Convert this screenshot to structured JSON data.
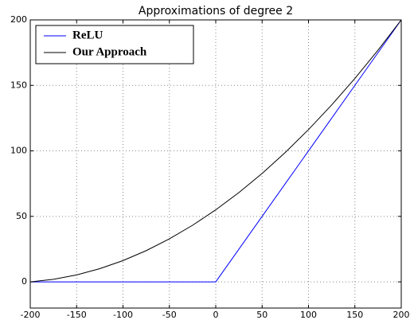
{
  "chart_data": {
    "type": "line",
    "title": "Approximations of degree 2",
    "x": [
      -200,
      -175,
      -150,
      -125,
      -100,
      -75,
      -50,
      -25,
      0,
      25,
      50,
      75,
      100,
      125,
      150,
      175,
      200
    ],
    "series": [
      {
        "name": "ReLU",
        "color": "#0000ff",
        "values": [
          0,
          0,
          0,
          0,
          0,
          0,
          0,
          0,
          0,
          25,
          50,
          75,
          100,
          125,
          150,
          175,
          200
        ]
      },
      {
        "name": "Our Approach",
        "color": "#000000",
        "values": [
          0,
          1.95,
          5.31,
          10.08,
          16.25,
          23.83,
          32.81,
          43.2,
          55,
          68.2,
          82.81,
          98.83,
          116.25,
          135.08,
          155.31,
          176.95,
          200
        ]
      }
    ],
    "xlim": [
      -200,
      200
    ],
    "xticks": [
      -200,
      -150,
      -100,
      -50,
      0,
      50,
      100,
      150,
      200
    ],
    "ylim": [
      -20,
      200
    ],
    "yticks": [
      0,
      50,
      100,
      150,
      200
    ],
    "grid": true,
    "legend": "upper left"
  }
}
